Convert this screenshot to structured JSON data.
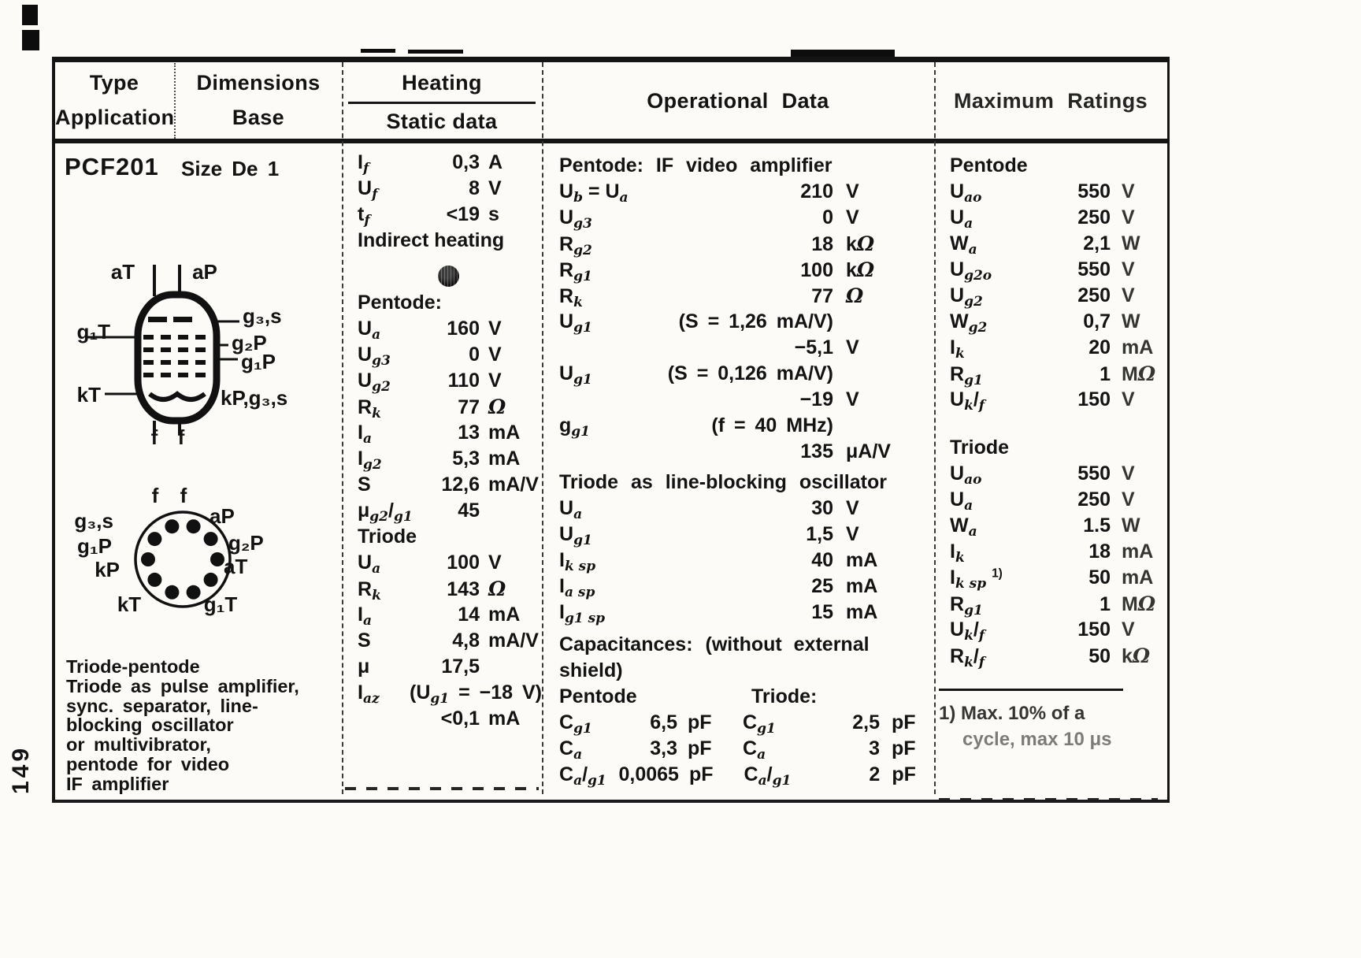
{
  "page_number": "149",
  "header": {
    "col1_line1": "Type",
    "col1_line2": "Application",
    "col2_line1": "Dimensions",
    "col2_line2": "Base",
    "col3_line1": "Heating",
    "col3_line2": "Static data",
    "col4": "Operational Data",
    "col5": "Maximum Ratings"
  },
  "type_info": {
    "name": "PCF201",
    "size": "Size De 1",
    "application_lines": [
      "Triode-pentode",
      "Triode as pulse amplifier,",
      "sync. separator, line-",
      "blocking oscillator",
      "or multivibrator,",
      "pentode for video",
      "IF amplifier"
    ]
  },
  "diagrams": {
    "tube_labels": {
      "top_left": "aT",
      "top_right": "aP",
      "r1": "g₃,s",
      "l1": "g₁T",
      "r2": "g₂P",
      "r3": "g₁P",
      "l2": "kT",
      "r4": "kP,g₃,s",
      "b1": "f",
      "b2": "f"
    },
    "base_labels": {
      "t1": "f",
      "t2": "f",
      "lt": "g₃,s",
      "rt": "aP",
      "l": "g₁P",
      "r": "g₂P",
      "lb": "kP",
      "rb": "aT",
      "bl": "kT",
      "br": "g₁T"
    }
  },
  "heating": {
    "rows": [
      {
        "l": "I_{f}",
        "v": "0,3",
        "u": "A"
      },
      {
        "l": "U_{f}",
        "v": "8",
        "u": "V"
      },
      {
        "l": "t_{f}",
        "v": "<19",
        "u": "s"
      },
      {
        "text": "Indirect heating"
      },
      {
        "icon": "dot",
        "gap": 6
      },
      {
        "head": "Pentode:"
      },
      {
        "l": "U_{a}",
        "v": "160",
        "u": "V"
      },
      {
        "l": "U_{g3}",
        "v": "0",
        "u": "V"
      },
      {
        "l": "U_{g2}",
        "v": "110",
        "u": "V"
      },
      {
        "l": "R_{k}",
        "v": "77",
        "u": "Ω"
      },
      {
        "l": "I_{a}",
        "v": "13",
        "u": "mA"
      },
      {
        "l": "I_{g2}",
        "v": "5,3",
        "u": "mA"
      },
      {
        "l": "S",
        "v": "12,6",
        "u": "mA/V"
      },
      {
        "l": "μ_{g2}/_{g1}",
        "v": "45",
        "u": ""
      },
      {
        "head": "Triode"
      },
      {
        "l": "U_{a}",
        "v": "100",
        "u": "V"
      },
      {
        "l": "R_{k}",
        "v": "143",
        "u": "Ω"
      },
      {
        "l": "I_{a}",
        "v": "14",
        "u": "mA"
      },
      {
        "l": "S",
        "v": "4,8",
        "u": "mA/V"
      },
      {
        "l": "μ",
        "v": "17,5",
        "u": ""
      },
      {
        "l": "I_{az}",
        "cond": "(U_{g1} = −18 V)"
      },
      {
        "v": "<0,1",
        "u": "mA"
      }
    ]
  },
  "operational": {
    "rows": [
      {
        "head": "Pentode: IF video amplifier"
      },
      {
        "l": "U_{b} = U_{a}",
        "v": "210",
        "u": "V"
      },
      {
        "l": "U_{g3}",
        "v": "0",
        "u": "V"
      },
      {
        "l": "R_{g2}",
        "v": "18",
        "u": "kΩ"
      },
      {
        "l": "R_{g1}",
        "v": "100",
        "u": "kΩ"
      },
      {
        "l": "R_{k}",
        "v": "77",
        "u": "Ω"
      },
      {
        "l": "U_{g1}",
        "cond": "(S = 1,26 mA/V)"
      },
      {
        "v": "−5,1",
        "u": "V"
      },
      {
        "l": "U_{g1}",
        "cond": "(S = 0,126 mA/V)"
      },
      {
        "v": "−19",
        "u": "V"
      },
      {
        "l": "g_{g1}",
        "cond": "(f = 40 MHz)"
      },
      {
        "v": "135",
        "u": "μA/V"
      },
      {
        "head": "Triode as line-blocking oscillator",
        "gap": 6
      },
      {
        "l": "U_{a}",
        "v": "30",
        "u": "V"
      },
      {
        "l": "U_{g1}",
        "v": "1,5",
        "u": "V"
      },
      {
        "l": "I_{k sp}",
        "v": "40",
        "u": "mA"
      },
      {
        "l": "I_{a sp}",
        "v": "25",
        "u": "mA"
      },
      {
        "l": "I_{g1 sp}",
        "v": "15",
        "u": "mA"
      },
      {
        "head2": "Capacitances:",
        "tail": "(without external",
        "gap": 8
      },
      {
        "text": "shield)"
      },
      {
        "pairhead": [
          "Pentode",
          "Triode:"
        ]
      },
      {
        "pair": {
          "l1": "C_{g1}",
          "v1": "6,5",
          "u1": "pF",
          "l2": "C_{g1}",
          "v2": "2,5",
          "u2": "pF"
        }
      },
      {
        "pair": {
          "l1": "C_{a}",
          "v1": "3,3",
          "u1": "pF",
          "l2": "C_{a}",
          "v2": "3",
          "u2": "pF"
        }
      },
      {
        "pair": {
          "l1": "C_{a}/_{g1}",
          "v1": "0,0065",
          "u1": "pF",
          "l2": "C_{a}/_{g1}",
          "v2": "2",
          "u2": "pF"
        }
      }
    ]
  },
  "max_ratings": {
    "rows": [
      {
        "head": "Pentode"
      },
      {
        "l": "U_{ao}",
        "v": "550",
        "u": "V"
      },
      {
        "l": "U_{a}",
        "v": "250",
        "u": "V"
      },
      {
        "l": "W_{a}",
        "v": "2,1",
        "u": "W"
      },
      {
        "l": "U_{g2o}",
        "v": "550",
        "u": "V"
      },
      {
        "l": "U_{g2}",
        "v": "250",
        "u": "V"
      },
      {
        "l": "W_{g2}",
        "v": "0,7",
        "u": "W"
      },
      {
        "l": "I_{k}",
        "v": "20",
        "u": "mA"
      },
      {
        "l": "R_{g1}",
        "v": "1",
        "u": "MΩ"
      },
      {
        "l": "U_{k}/_{f}",
        "v": "150",
        "u": "V"
      },
      {
        "head": "Triode",
        "gap": 28
      },
      {
        "l": "U_{ao}",
        "v": "550",
        "u": "V"
      },
      {
        "l": "U_{a}",
        "v": "250",
        "u": "V"
      },
      {
        "l": "W_{a}",
        "v": "1.5",
        "u": "W"
      },
      {
        "l": "I_{k}",
        "v": "18",
        "u": "mA"
      },
      {
        "l": "I_{k sp} ^{1)}",
        "v": "50",
        "u": "mA"
      },
      {
        "l": "R_{g1}",
        "v": "1",
        "u": "MΩ"
      },
      {
        "l": "U_{k}/_{f}",
        "v": "150",
        "u": "V"
      },
      {
        "l": "R_{k}/_{f}",
        "v": "50",
        "u": "kΩ"
      }
    ],
    "footnote_lines": [
      "1) Max. 10% of a",
      "cycle, max 10 μs"
    ]
  }
}
